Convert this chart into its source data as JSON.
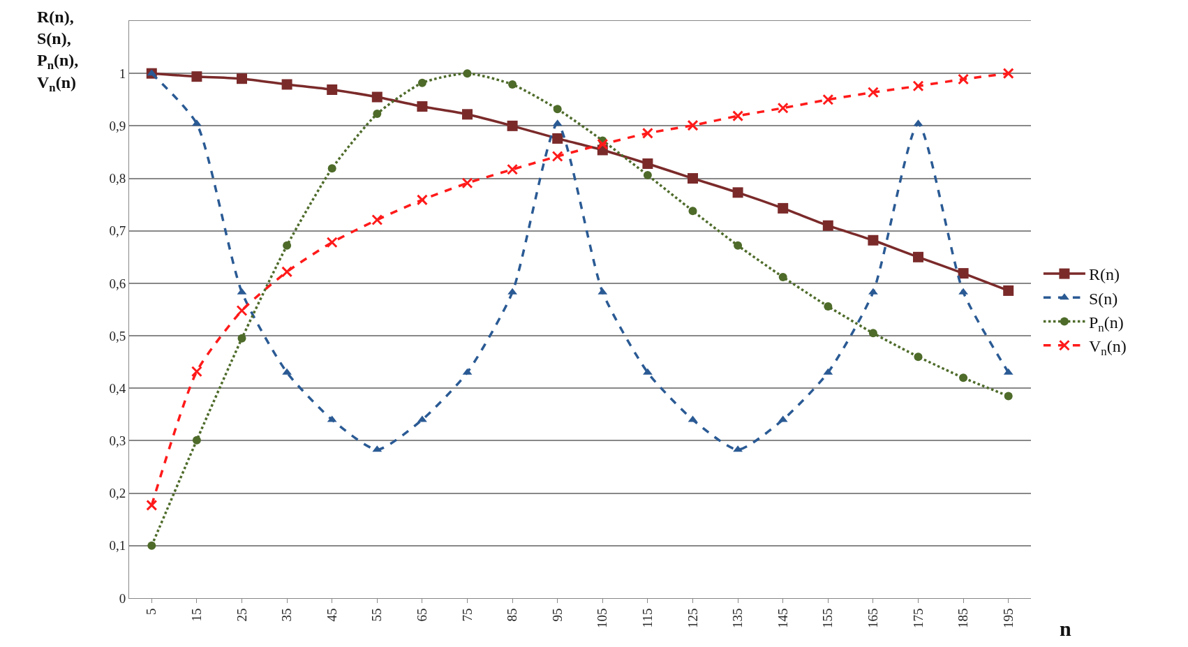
{
  "chart_data": {
    "type": "line",
    "ylabel": "R(n),\nS(n),\nP$_{n}$(n),\nV$_{n}$(n)",
    "xlabel": "n",
    "categories": [
      "5",
      "15",
      "25",
      "35",
      "45",
      "55",
      "65",
      "75",
      "85",
      "95",
      "105",
      "115",
      "125",
      "135",
      "145",
      "155",
      "165",
      "175",
      "185",
      "195"
    ],
    "series": [
      {
        "name": "R(n)",
        "color": "#7b2a2a",
        "marker": "square",
        "line_style": "solid",
        "values": [
          1.0,
          0.994,
          0.99,
          0.979,
          0.969,
          0.955,
          0.937,
          0.922,
          0.9,
          0.876,
          0.854,
          0.828,
          0.8,
          0.773,
          0.743,
          0.71,
          0.682,
          0.65,
          0.619,
          0.586
        ]
      },
      {
        "name": "S(n)",
        "color": "#2a5a94",
        "marker": "triangle",
        "line_style": "dashed",
        "values": [
          1.0,
          0.904,
          0.583,
          0.43,
          0.34,
          0.283,
          0.34,
          0.43,
          0.583,
          0.904,
          0.583,
          0.43,
          0.34,
          0.283,
          0.34,
          0.43,
          0.583,
          0.904,
          0.583,
          0.43
        ]
      },
      {
        "name": "P$_{n}$(n)",
        "color": "#4e6b2a",
        "marker": "circle",
        "line_style": "dotted",
        "values": [
          0.1,
          0.301,
          0.495,
          0.672,
          0.819,
          0.923,
          0.982,
          1.0,
          0.979,
          0.932,
          0.872,
          0.806,
          0.738,
          0.672,
          0.612,
          0.556,
          0.505,
          0.46,
          0.42,
          0.385
        ]
      },
      {
        "name": "V$_{n}$(n)",
        "color": "#ff1a1a",
        "marker": "cross",
        "line_style": "dashed",
        "values": [
          0.177,
          0.432,
          0.548,
          0.622,
          0.678,
          0.721,
          0.759,
          0.791,
          0.817,
          0.842,
          0.865,
          0.886,
          0.901,
          0.919,
          0.934,
          0.95,
          0.964,
          0.976,
          0.989,
          1.0
        ]
      }
    ],
    "ylim": [
      0,
      1.1
    ],
    "yticks": [
      0,
      {
        "value": 0.1,
        "label": "0,1"
      },
      {
        "value": 0.2,
        "label": "0,2"
      },
      {
        "value": 0.3,
        "label": "0,3"
      },
      {
        "value": 0.4,
        "label": "0,4"
      },
      {
        "value": 0.5,
        "label": "0,5"
      },
      {
        "value": 0.6,
        "label": "0,6"
      },
      {
        "value": 0.7,
        "label": "0,7"
      },
      {
        "value": 0.8,
        "label": "0,8"
      },
      {
        "value": 0.9,
        "label": "0,9"
      },
      1
    ],
    "grid": "y",
    "legend": "right"
  }
}
